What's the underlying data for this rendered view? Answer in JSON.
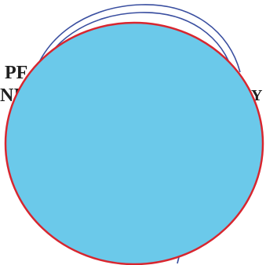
{
  "document": {
    "fragments": [
      "PF",
      "NI",
      "Y"
    ]
  },
  "overlay": {
    "fill_color": "#6bc9ea",
    "stroke_color": "#d8262f"
  },
  "seal": {
    "ink_color": "#3a4fa0"
  }
}
